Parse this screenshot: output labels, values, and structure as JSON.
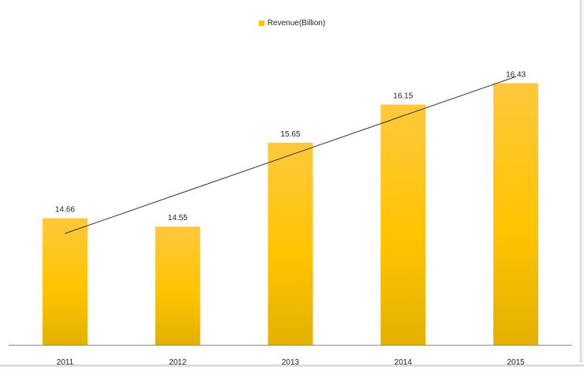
{
  "chart_data": {
    "type": "bar",
    "categories": [
      "2011",
      "2012",
      "2013",
      "2014",
      "2015"
    ],
    "series": [
      {
        "name": "Revenue(Billion)",
        "values": [
          14.66,
          14.55,
          15.65,
          16.15,
          16.43
        ],
        "color": "#FFC400"
      }
    ],
    "data_labels": [
      "14.66",
      "14.55",
      "15.65",
      "16.15",
      "16.43"
    ],
    "trendline": {
      "type": "linear",
      "color": "#333333"
    },
    "legend": {
      "position": "top-center"
    },
    "ylim": [
      13.0,
      16.9
    ],
    "grid": false,
    "y_axis_visible": false
  }
}
